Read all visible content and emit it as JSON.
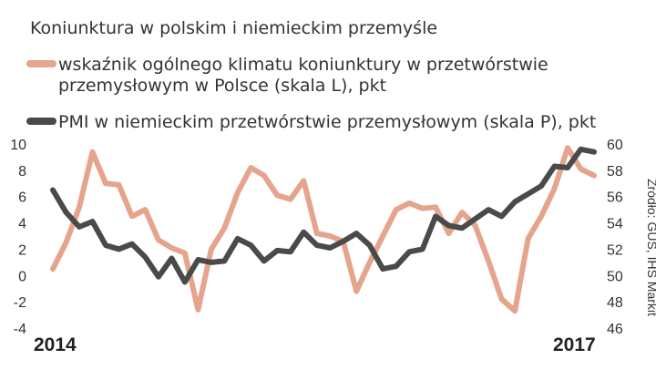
{
  "chart_data": {
    "type": "line",
    "title": "Koniunktura w polskim i niemieckim przemyśle",
    "series": [
      {
        "name": "wskaźnik ogólnego klimatu koniunktury w przetwórstwie przemysłowym w Polsce (skala L), pkt",
        "axis": "left",
        "color": "#e5a48c",
        "values": [
          0.5,
          2.5,
          5.2,
          9.4,
          7.0,
          6.9,
          4.5,
          5.0,
          2.7,
          2.1,
          1.7,
          -2.6,
          2.0,
          3.6,
          6.3,
          8.2,
          7.6,
          6.1,
          5.8,
          7.2,
          3.2,
          3.0,
          2.6,
          -1.2,
          1.0,
          3.0,
          5.0,
          5.5,
          5.1,
          5.2,
          3.2,
          4.8,
          3.8,
          1.1,
          -1.8,
          -2.7,
          2.8,
          4.5,
          6.6,
          9.7,
          8.1,
          7.6
        ]
      },
      {
        "name": "PMI w niemieckim przetwórstwie przemysłowym (skala P), pkt",
        "axis": "right",
        "color": "#4a4a4a",
        "values": [
          56.5,
          54.8,
          53.7,
          54.1,
          52.3,
          52.0,
          52.4,
          51.4,
          49.9,
          51.3,
          49.5,
          51.2,
          51.0,
          51.1,
          52.8,
          52.3,
          51.1,
          51.9,
          51.8,
          53.3,
          52.3,
          52.1,
          52.6,
          53.2,
          52.3,
          50.5,
          50.7,
          51.8,
          52.0,
          54.5,
          53.8,
          53.6,
          54.3,
          55.0,
          54.5,
          55.6,
          56.2,
          56.8,
          58.3,
          58.2,
          59.6,
          59.4
        ]
      }
    ],
    "x_labels": [
      "2014",
      "2017"
    ],
    "y_left": {
      "ticks": [
        "10",
        "8",
        "6",
        "4",
        "2",
        "0",
        "-2",
        "-4"
      ],
      "ylim": [
        -4,
        10
      ]
    },
    "y_right": {
      "ticks": [
        "60",
        "58",
        "56",
        "54",
        "52",
        "50",
        "48",
        "46"
      ],
      "ylim": [
        46,
        60
      ]
    },
    "grid": false,
    "legend_placement": "top-left",
    "source": "Źródło: GUS, IHS Markit"
  }
}
